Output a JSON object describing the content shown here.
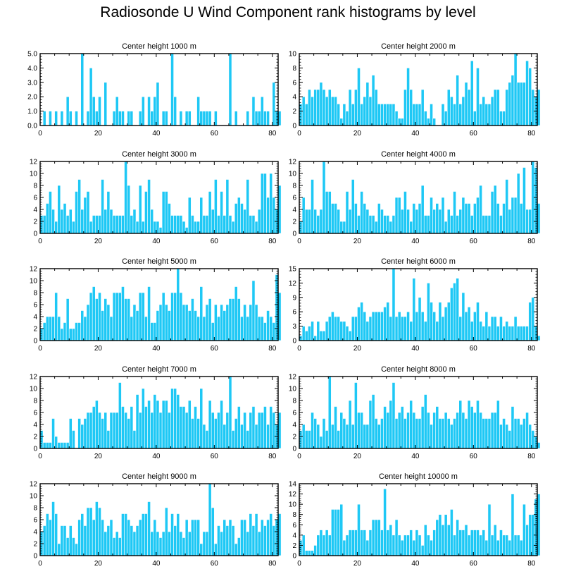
{
  "title": "Radiosonde U Wind Component rank histograms by level",
  "colors": {
    "bar": "#1ec8f5",
    "bar_edge": "#ffffff",
    "axis": "#000000"
  },
  "chart_data": [
    {
      "type": "bar",
      "title": "Center height 1000 m",
      "xlim": [
        0,
        82
      ],
      "ylim": [
        0,
        5
      ],
      "xticks": [
        "0",
        "20",
        "40",
        "60",
        "80"
      ],
      "yticks": [
        "0.0",
        "1.0",
        "2.0",
        "3.0",
        "4.0",
        "5.0"
      ],
      "values": [
        0,
        1,
        0,
        1,
        0,
        1,
        0,
        1,
        0,
        2,
        1,
        0,
        1,
        0,
        5,
        0,
        1,
        4,
        2,
        1,
        2,
        0,
        3,
        0,
        0,
        1,
        2,
        1,
        1,
        0,
        1,
        1,
        0,
        0,
        1,
        2,
        0,
        2,
        1,
        2,
        3,
        0,
        1,
        1,
        0,
        5,
        2,
        0,
        1,
        0,
        1,
        1,
        0,
        0,
        2,
        1,
        1,
        1,
        1,
        0,
        1,
        0,
        0,
        0,
        0,
        5,
        0,
        1,
        0,
        0,
        0,
        1,
        0,
        2,
        1,
        1,
        2,
        1,
        1,
        0,
        3,
        1,
        1
      ]
    },
    {
      "type": "bar",
      "title": "Center height 2000 m",
      "xlim": [
        0,
        82
      ],
      "ylim": [
        0,
        10
      ],
      "xticks": [
        "0",
        "20",
        "40",
        "60",
        "80"
      ],
      "yticks": [
        "0",
        "2",
        "4",
        "6",
        "8",
        "10"
      ],
      "values": [
        3,
        4,
        3,
        5,
        4,
        5,
        5,
        6,
        5,
        4,
        5,
        4,
        4,
        3,
        1,
        3,
        2,
        5,
        3,
        5,
        8,
        3,
        4,
        6,
        4,
        7,
        5,
        3,
        3,
        3,
        3,
        3,
        3,
        2,
        1,
        1,
        5,
        8,
        5,
        3,
        3,
        3,
        5,
        2,
        1,
        3,
        1,
        0,
        0,
        3,
        2,
        5,
        4,
        3,
        7,
        3,
        4,
        6,
        5,
        9,
        2,
        8,
        3,
        4,
        3,
        3,
        4,
        5,
        5,
        2,
        2,
        5,
        6,
        7,
        10,
        6,
        6,
        6,
        9,
        8,
        5,
        4,
        5
      ]
    },
    {
      "type": "bar",
      "title": "Center height 3000 m",
      "xlim": [
        0,
        82
      ],
      "ylim": [
        0,
        12
      ],
      "xticks": [
        "0",
        "20",
        "40",
        "60",
        "80"
      ],
      "yticks": [
        "0",
        "2",
        "4",
        "6",
        "8",
        "10",
        "12"
      ],
      "values": [
        3,
        3,
        5,
        7,
        4,
        2,
        8,
        4,
        5,
        3,
        4,
        2,
        7,
        9,
        4,
        6,
        7,
        2,
        3,
        3,
        3,
        9,
        4,
        7,
        4,
        3,
        3,
        3,
        3,
        12,
        8,
        3,
        4,
        2,
        8,
        2,
        7,
        9,
        4,
        2,
        2,
        1,
        7,
        7,
        5,
        3,
        3,
        3,
        3,
        2,
        1,
        6,
        3,
        2,
        2,
        6,
        3,
        3,
        7,
        4,
        9,
        3,
        7,
        3,
        9,
        3,
        2,
        5,
        6,
        5,
        4,
        9,
        3,
        3,
        2,
        4,
        10,
        10,
        6,
        10,
        6,
        4,
        8
      ]
    },
    {
      "type": "bar",
      "title": "Center height 4000 m",
      "xlim": [
        0,
        82
      ],
      "ylim": [
        0,
        12
      ],
      "xticks": [
        "0",
        "20",
        "40",
        "60",
        "80"
      ],
      "yticks": [
        "0",
        "2",
        "4",
        "6",
        "8",
        "10",
        "12"
      ],
      "values": [
        2,
        6,
        4,
        4,
        9,
        4,
        3,
        4,
        12,
        7,
        7,
        5,
        5,
        4,
        2,
        2,
        7,
        4,
        9,
        5,
        3,
        7,
        5,
        4,
        3,
        3,
        2,
        5,
        4,
        3,
        3,
        2,
        3,
        6,
        6,
        4,
        7,
        4,
        2,
        5,
        4,
        5,
        8,
        3,
        3,
        6,
        4,
        5,
        4,
        6,
        2,
        4,
        3,
        7,
        3,
        4,
        6,
        5,
        5,
        3,
        5,
        6,
        8,
        3,
        3,
        3,
        7,
        8,
        5,
        3,
        5,
        9,
        4,
        6,
        6,
        10,
        5,
        11,
        4,
        4,
        12,
        11,
        5
      ]
    },
    {
      "type": "bar",
      "title": "Center height 5000 m",
      "xlim": [
        0,
        82
      ],
      "ylim": [
        0,
        12
      ],
      "xticks": [
        "0",
        "20",
        "40",
        "60",
        "80"
      ],
      "yticks": [
        "0",
        "2",
        "4",
        "6",
        "8",
        "10",
        "12"
      ],
      "values": [
        2,
        3,
        4,
        4,
        4,
        8,
        4,
        2,
        3,
        7,
        2,
        2,
        3,
        3,
        5,
        4,
        6,
        8,
        9,
        7,
        8,
        5,
        7,
        6,
        4,
        8,
        8,
        8,
        9,
        7,
        7,
        4,
        6,
        5,
        8,
        8,
        4,
        9,
        3,
        3,
        5,
        6,
        8,
        6,
        5,
        8,
        8,
        12,
        8,
        6,
        6,
        5,
        7,
        5,
        4,
        9,
        4,
        6,
        7,
        3,
        6,
        4,
        6,
        5,
        6,
        7,
        7,
        9,
        7,
        4,
        6,
        4,
        6,
        10,
        6,
        4,
        4,
        3,
        5,
        4,
        3,
        11,
        8
      ]
    },
    {
      "type": "bar",
      "title": "Center height 6000 m",
      "xlim": [
        0,
        82
      ],
      "ylim": [
        0,
        15
      ],
      "xticks": [
        "0",
        "20",
        "40",
        "60",
        "80"
      ],
      "yticks": [
        "0",
        "3",
        "6",
        "9",
        "12",
        "15"
      ],
      "values": [
        1,
        3,
        2,
        3,
        4,
        1,
        4,
        2,
        2,
        4,
        5,
        6,
        5,
        5,
        4,
        4,
        3,
        2,
        5,
        5,
        7,
        8,
        6,
        4,
        5,
        6,
        6,
        6,
        6,
        7,
        8,
        5,
        15,
        5,
        6,
        5,
        5,
        6,
        4,
        13,
        6,
        9,
        6,
        4,
        12,
        8,
        6,
        4,
        8,
        5,
        7,
        8,
        11,
        12,
        13,
        5,
        10,
        6,
        7,
        4,
        6,
        8,
        4,
        3,
        6,
        3,
        5,
        5,
        3,
        5,
        3,
        4,
        3,
        3,
        5,
        3,
        3,
        3,
        3,
        8,
        9,
        3,
        1
      ]
    },
    {
      "type": "bar",
      "title": "Center height 7000 m",
      "xlim": [
        0,
        82
      ],
      "ylim": [
        0,
        12
      ],
      "xticks": [
        "0",
        "20",
        "40",
        "60",
        "80"
      ],
      "yticks": [
        "0",
        "2",
        "4",
        "6",
        "8",
        "10",
        "12"
      ],
      "values": [
        3,
        1,
        1,
        1,
        5,
        2,
        1,
        1,
        1,
        1,
        5,
        3,
        0,
        5,
        4,
        5,
        6,
        6,
        7,
        8,
        6,
        5,
        6,
        3,
        6,
        6,
        6,
        11,
        7,
        6,
        5,
        7,
        3,
        9,
        6,
        10,
        7,
        8,
        6,
        9,
        8,
        6,
        8,
        8,
        6,
        10,
        10,
        9,
        7,
        7,
        6,
        8,
        5,
        7,
        5,
        10,
        4,
        3,
        8,
        6,
        5,
        6,
        8,
        4,
        6,
        12,
        3,
        5,
        7,
        4,
        6,
        3,
        6,
        7,
        4,
        6,
        6,
        7,
        4,
        7,
        6,
        4,
        6
      ]
    },
    {
      "type": "bar",
      "title": "Center height 8000 m",
      "xlim": [
        0,
        82
      ],
      "ylim": [
        0,
        12
      ],
      "xticks": [
        "0",
        "20",
        "40",
        "60",
        "80"
      ],
      "yticks": [
        "0",
        "2",
        "4",
        "6",
        "8",
        "10",
        "12"
      ],
      "values": [
        3,
        4,
        3,
        3,
        6,
        5,
        4,
        2,
        5,
        3,
        12,
        4,
        7,
        3,
        6,
        5,
        4,
        8,
        4,
        11,
        6,
        6,
        4,
        4,
        8,
        9,
        5,
        4,
        5,
        7,
        6,
        8,
        11,
        5,
        6,
        7,
        5,
        6,
        8,
        6,
        5,
        5,
        7,
        9,
        6,
        4,
        6,
        7,
        5,
        5,
        6,
        5,
        4,
        5,
        6,
        8,
        6,
        5,
        8,
        7,
        6,
        8,
        6,
        5,
        5,
        5,
        6,
        6,
        8,
        4,
        5,
        4,
        3,
        7,
        5,
        5,
        4,
        5,
        6,
        4,
        3,
        2,
        1
      ]
    },
    {
      "type": "bar",
      "title": "Center height 9000 m",
      "xlim": [
        0,
        82
      ],
      "ylim": [
        0,
        12
      ],
      "xticks": [
        "0",
        "20",
        "40",
        "60",
        "80"
      ],
      "yticks": [
        "0",
        "2",
        "4",
        "6",
        "8",
        "10",
        "12"
      ],
      "values": [
        4,
        5,
        7,
        6,
        9,
        7,
        2,
        5,
        5,
        3,
        5,
        3,
        2,
        6,
        7,
        5,
        8,
        8,
        6,
        9,
        8,
        6,
        4,
        5,
        6,
        3,
        4,
        3,
        7,
        7,
        6,
        5,
        4,
        5,
        6,
        7,
        7,
        9,
        4,
        6,
        4,
        3,
        4,
        8,
        4,
        7,
        5,
        7,
        4,
        3,
        6,
        4,
        6,
        6,
        6,
        2,
        4,
        4,
        12,
        8,
        2,
        5,
        4,
        6,
        5,
        6,
        5,
        2,
        3,
        6,
        6,
        4,
        7,
        5,
        7,
        4,
        6,
        5,
        6,
        7,
        5,
        6,
        7
      ]
    },
    {
      "type": "bar",
      "title": "Center height 10000 m",
      "xlim": [
        0,
        82
      ],
      "ylim": [
        0,
        14
      ],
      "xticks": [
        "0",
        "20",
        "40",
        "60",
        "80"
      ],
      "yticks": [
        "0",
        "2",
        "4",
        "6",
        "8",
        "10",
        "12",
        "14"
      ],
      "values": [
        3,
        4,
        1,
        1,
        1,
        2,
        4,
        5,
        4,
        5,
        4,
        9,
        9,
        9,
        10,
        3,
        4,
        5,
        5,
        5,
        10,
        5,
        5,
        3,
        5,
        7,
        7,
        7,
        5,
        13,
        5,
        6,
        4,
        7,
        4,
        3,
        4,
        4,
        5,
        3,
        5,
        4,
        2,
        6,
        4,
        3,
        5,
        7,
        8,
        6,
        8,
        6,
        9,
        4,
        7,
        5,
        5,
        6,
        4,
        5,
        5,
        5,
        4,
        5,
        3,
        10,
        4,
        6,
        3,
        5,
        4,
        4,
        3,
        12,
        4,
        4,
        3,
        10,
        6,
        8,
        8,
        11,
        12
      ]
    }
  ]
}
